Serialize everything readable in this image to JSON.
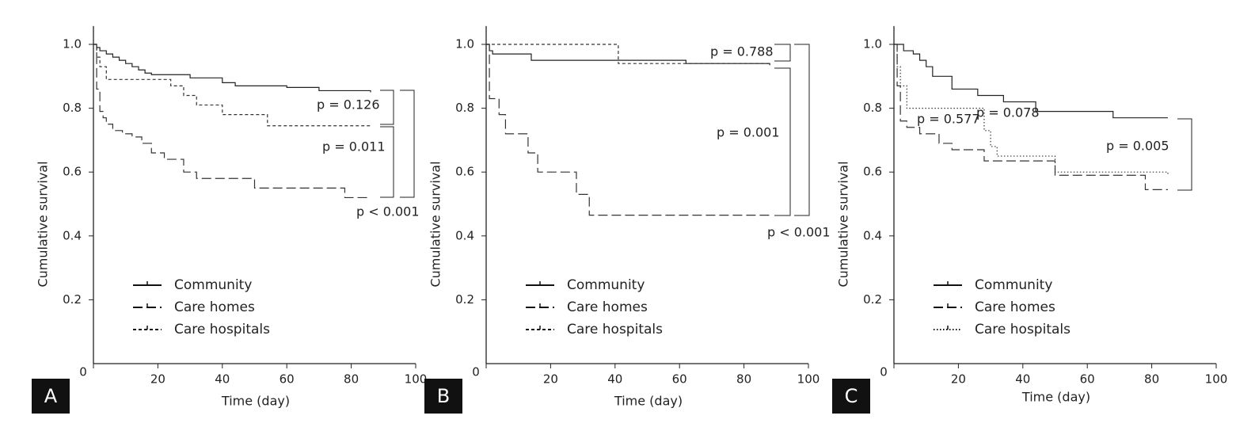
{
  "chart_data": [
    {
      "type": "step",
      "panel_label": "A",
      "x_label": "Time (day)",
      "y_label": "Cumulative survival",
      "xlim": [
        0,
        100
      ],
      "ylim": [
        0,
        1.05
      ],
      "xticks": [
        0,
        20,
        40,
        60,
        80,
        100
      ],
      "yticks": [
        0.2,
        0.4,
        0.6,
        0.8,
        {
          "value": 1,
          "label": "1.0"
        }
      ],
      "series": [
        {
          "name": "Community",
          "color": "#222222",
          "dash": "solid",
          "x": [
            0,
            1,
            2,
            4,
            6,
            8,
            10,
            12,
            14,
            16,
            18,
            30,
            40,
            44,
            60,
            70,
            86
          ],
          "values": [
            1,
            0.99,
            0.98,
            0.97,
            0.96,
            0.95,
            0.94,
            0.93,
            0.92,
            0.91,
            0.905,
            0.895,
            0.88,
            0.87,
            0.865,
            0.855,
            0.85
          ]
        },
        {
          "name": "Care homes",
          "color": "#333333",
          "dash": "long-dash",
          "x": [
            0,
            1,
            2,
            3,
            4,
            6,
            9,
            12,
            15,
            18,
            22,
            28,
            32,
            50,
            78,
            86
          ],
          "values": [
            1,
            0.86,
            0.79,
            0.77,
            0.75,
            0.73,
            0.72,
            0.71,
            0.69,
            0.66,
            0.64,
            0.6,
            0.58,
            0.55,
            0.52,
            0.52
          ]
        },
        {
          "name": "Care hospitals",
          "color": "#333333",
          "dash": "short-dash",
          "x": [
            0,
            1,
            2,
            4,
            24,
            28,
            32,
            40,
            54,
            86
          ],
          "values": [
            1,
            0.96,
            0.93,
            0.89,
            0.87,
            0.84,
            0.81,
            0.78,
            0.745,
            0.745
          ]
        }
      ],
      "annotations": [
        "p = 0.126",
        "p = 0.011",
        "p < 0.001"
      ]
    },
    {
      "type": "step",
      "panel_label": "B",
      "x_label": "Time (day)",
      "y_label": "Cumulative survival",
      "xlim": [
        0,
        100
      ],
      "ylim": [
        0,
        1.05
      ],
      "xticks": [
        0,
        20,
        40,
        60,
        80,
        100
      ],
      "yticks": [
        0.2,
        0.4,
        0.6,
        0.8,
        {
          "value": 1,
          "label": "1.0"
        }
      ],
      "series": [
        {
          "name": "Community",
          "color": "#222222",
          "dash": "solid",
          "x": [
            0,
            1,
            2,
            14,
            62,
            88
          ],
          "values": [
            1,
            0.98,
            0.97,
            0.95,
            0.94,
            0.935
          ]
        },
        {
          "name": "Care homes",
          "color": "#333333",
          "dash": "long-dash",
          "x": [
            0,
            1,
            4,
            6,
            13,
            16,
            28,
            32,
            88
          ],
          "values": [
            1,
            0.83,
            0.78,
            0.72,
            0.66,
            0.6,
            0.53,
            0.465,
            0.465
          ]
        },
        {
          "name": "Care hospitals",
          "color": "#333333",
          "dash": "short-dash",
          "x": [
            0,
            41,
            88
          ],
          "values": [
            1,
            0.94,
            0.935
          ]
        }
      ],
      "annotations": [
        "p = 0.788",
        "p = 0.001",
        "p < 0.001"
      ]
    },
    {
      "type": "step",
      "panel_label": "C",
      "x_label": "Time (day)",
      "y_label": "Cumulative survival",
      "xlim": [
        0,
        100
      ],
      "ylim": [
        0,
        1.05
      ],
      "xticks": [
        0,
        20,
        40,
        60,
        80,
        100
      ],
      "yticks": [
        0.2,
        0.4,
        0.6,
        0.8,
        {
          "value": 1,
          "label": "1.0"
        }
      ],
      "series": [
        {
          "name": "Community",
          "color": "#222222",
          "dash": "solid",
          "x": [
            0,
            3,
            6,
            8,
            10,
            12,
            18,
            26,
            34,
            44,
            68,
            85
          ],
          "values": [
            1,
            0.98,
            0.97,
            0.95,
            0.93,
            0.9,
            0.86,
            0.84,
            0.82,
            0.79,
            0.77,
            0.77
          ]
        },
        {
          "name": "Care homes",
          "color": "#333333",
          "dash": "long-dash",
          "x": [
            0,
            1,
            2,
            4,
            8,
            14,
            18,
            28,
            50,
            78,
            85
          ],
          "values": [
            1,
            0.87,
            0.76,
            0.74,
            0.72,
            0.69,
            0.67,
            0.635,
            0.59,
            0.545,
            0.545
          ]
        },
        {
          "name": "Care hospitals",
          "color": "#333333",
          "dash": "dotted",
          "x": [
            0,
            1,
            2,
            4,
            28,
            30,
            32,
            50,
            85
          ],
          "values": [
            1,
            0.93,
            0.87,
            0.8,
            0.73,
            0.68,
            0.65,
            0.6,
            0.59
          ]
        }
      ],
      "annotations": [
        "p = 0.577",
        "p = 0.078",
        "p = 0.005"
      ]
    }
  ]
}
